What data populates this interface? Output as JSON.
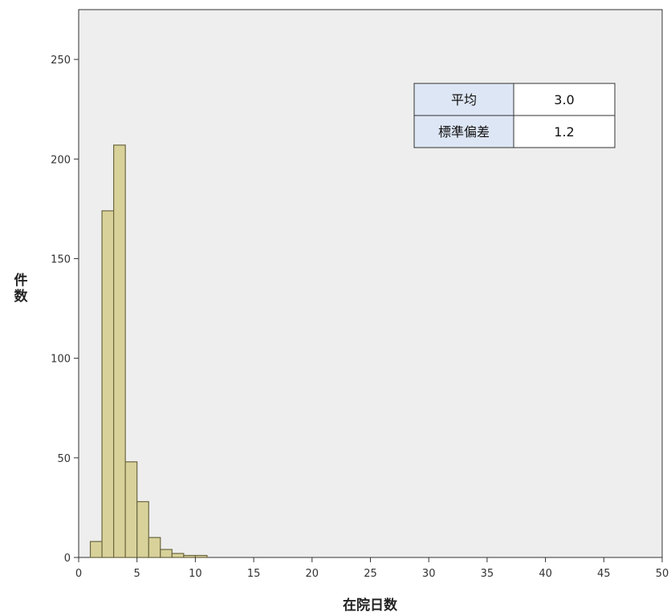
{
  "chart_data": {
    "type": "histogram",
    "xlabel": "在院日数",
    "ylabel": "件数",
    "xlim": [
      0,
      50
    ],
    "ylim": [
      0,
      275
    ],
    "x_ticks": [
      0,
      5,
      10,
      15,
      20,
      25,
      30,
      35,
      40,
      45,
      50
    ],
    "y_ticks": [
      0,
      50,
      100,
      150,
      200,
      250
    ],
    "bin_width": 1,
    "bins": [
      {
        "x0": 1,
        "x1": 2,
        "count": 8
      },
      {
        "x0": 2,
        "x1": 3,
        "count": 174
      },
      {
        "x0": 3,
        "x1": 4,
        "count": 207
      },
      {
        "x0": 4,
        "x1": 5,
        "count": 48
      },
      {
        "x0": 5,
        "x1": 6,
        "count": 28
      },
      {
        "x0": 6,
        "x1": 7,
        "count": 10
      },
      {
        "x0": 7,
        "x1": 8,
        "count": 4
      },
      {
        "x0": 8,
        "x1": 9,
        "count": 2
      },
      {
        "x0": 9,
        "x1": 10,
        "count": 1
      },
      {
        "x0": 10,
        "x1": 11,
        "count": 1
      }
    ],
    "bar_color": "#d8d29a",
    "bar_stroke": "#6b6640",
    "plot_background": "#eeeeee",
    "stats_table": {
      "rows": [
        {
          "label": "平均",
          "value": "3.0"
        },
        {
          "label": "標準偏差",
          "value": "1.2"
        }
      ],
      "label_background": "#dde6f4",
      "position": "top-right"
    }
  }
}
